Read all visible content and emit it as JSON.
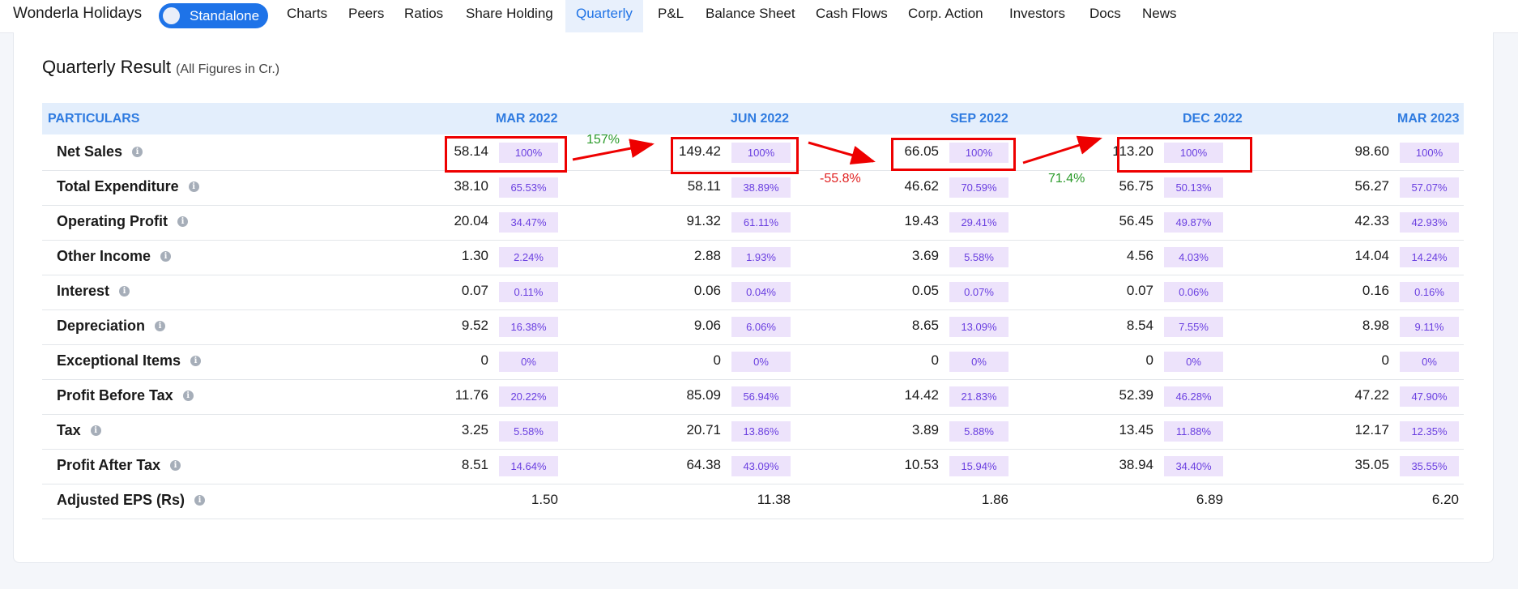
{
  "nav": {
    "company": "Wonderla Holidays",
    "toggle_label": "Standalone",
    "items": [
      "Charts",
      "Peers",
      "Ratios",
      "Share Holding",
      "Quarterly",
      "P&L",
      "Balance Sheet",
      "Cash Flows",
      "Corp. Action",
      "Investors",
      "Docs",
      "News"
    ],
    "active": "Quarterly"
  },
  "card": {
    "title": "Quarterly Result",
    "subtitle": "(All Figures in Cr.)"
  },
  "table": {
    "header": {
      "particulars": "PARTICULARS",
      "periods": [
        "MAR 2022",
        "JUN 2022",
        "SEP 2022",
        "DEC 2022",
        "MAR 2023"
      ]
    },
    "rows": [
      {
        "label": "Net Sales",
        "values": [
          "58.14",
          "149.42",
          "66.05",
          "113.20",
          "98.60"
        ],
        "pcts": [
          "100%",
          "100%",
          "100%",
          "100%",
          "100%"
        ]
      },
      {
        "label": "Total Expenditure",
        "values": [
          "38.10",
          "58.11",
          "46.62",
          "56.75",
          "56.27"
        ],
        "pcts": [
          "65.53%",
          "38.89%",
          "70.59%",
          "50.13%",
          "57.07%"
        ]
      },
      {
        "label": "Operating Profit",
        "values": [
          "20.04",
          "91.32",
          "19.43",
          "56.45",
          "42.33"
        ],
        "pcts": [
          "34.47%",
          "61.11%",
          "29.41%",
          "49.87%",
          "42.93%"
        ]
      },
      {
        "label": "Other Income",
        "values": [
          "1.30",
          "2.88",
          "3.69",
          "4.56",
          "14.04"
        ],
        "pcts": [
          "2.24%",
          "1.93%",
          "5.58%",
          "4.03%",
          "14.24%"
        ]
      },
      {
        "label": "Interest",
        "values": [
          "0.07",
          "0.06",
          "0.05",
          "0.07",
          "0.16"
        ],
        "pcts": [
          "0.11%",
          "0.04%",
          "0.07%",
          "0.06%",
          "0.16%"
        ]
      },
      {
        "label": "Depreciation",
        "values": [
          "9.52",
          "9.06",
          "8.65",
          "8.54",
          "8.98"
        ],
        "pcts": [
          "16.38%",
          "6.06%",
          "13.09%",
          "7.55%",
          "9.11%"
        ]
      },
      {
        "label": "Exceptional Items",
        "values": [
          "0",
          "0",
          "0",
          "0",
          "0"
        ],
        "pcts": [
          "0%",
          "0%",
          "0%",
          "0%",
          "0%"
        ]
      },
      {
        "label": "Profit Before Tax",
        "values": [
          "11.76",
          "85.09",
          "14.42",
          "52.39",
          "47.22"
        ],
        "pcts": [
          "20.22%",
          "56.94%",
          "21.83%",
          "46.28%",
          "47.90%"
        ]
      },
      {
        "label": "Tax",
        "values": [
          "3.25",
          "20.71",
          "3.89",
          "13.45",
          "12.17"
        ],
        "pcts": [
          "5.58%",
          "13.86%",
          "5.88%",
          "11.88%",
          "12.35%"
        ]
      },
      {
        "label": "Profit After Tax",
        "values": [
          "8.51",
          "64.38",
          "10.53",
          "38.94",
          "35.05"
        ],
        "pcts": [
          "14.64%",
          "43.09%",
          "15.94%",
          "34.40%",
          "35.55%"
        ]
      },
      {
        "label": "Adjusted EPS (Rs)",
        "values": [
          "1.50",
          "11.38",
          "1.86",
          "6.89",
          "6.20"
        ],
        "pcts": []
      }
    ]
  },
  "annotations": {
    "growth_labels": [
      {
        "text": "157%",
        "color": "#2a9a2a"
      },
      {
        "text": "-55.8%",
        "color": "#e02020"
      },
      {
        "text": "71.4%",
        "color": "#2a9a2a"
      }
    ]
  },
  "colors": {
    "accent": "#1e73e8",
    "header_bg": "#e3eefc",
    "pct_bg": "#ede3fb",
    "pct_text": "#6a3fe0",
    "highlight": "#ee0000"
  }
}
